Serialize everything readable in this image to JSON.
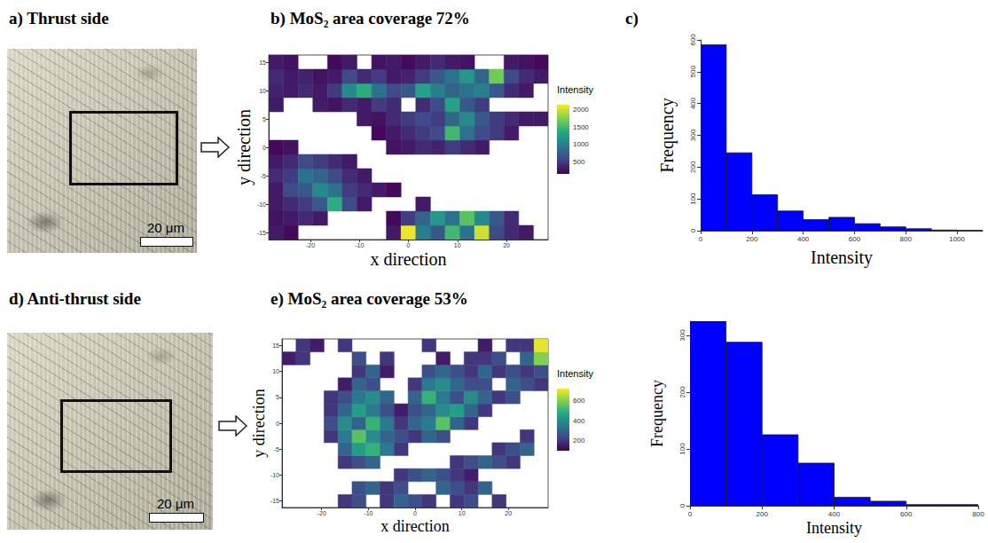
{
  "images": [
    {
      "title": "a) Thrust side",
      "scale_bar": "20 μm"
    },
    {
      "title": "d) Anti-thrust side",
      "scale_bar": "20 μm"
    }
  ],
  "chart_data": [
    {
      "type": "heatmap",
      "title": "b) MoS₂ area coverage 72%",
      "x_label": "x direction",
      "y_label": "y direction",
      "xlim": [
        -28.5,
        28.5
      ],
      "ylim": [
        -16.25,
        16.25
      ],
      "xticks": [
        -20,
        -10,
        0,
        10,
        20
      ],
      "yticks": [
        -15,
        -10,
        -5,
        0,
        5,
        10,
        15
      ],
      "x": [
        -27,
        -24,
        -21,
        -18,
        -15,
        -12,
        -9,
        -6,
        -3,
        0,
        3,
        6,
        9,
        12,
        15,
        18,
        21,
        24,
        27
      ],
      "y": [
        -15,
        -12.5,
        -10,
        -7.5,
        -5,
        -2.5,
        0,
        2.5,
        5,
        7.5,
        10,
        12.5,
        15
      ],
      "cells": [
        [
          300,
          200,
          null,
          null,
          null,
          null,
          null,
          null,
          300,
          2100,
          1000,
          700,
          1500,
          900,
          2000,
          600,
          400,
          300,
          null
        ],
        [
          250,
          300,
          400,
          300,
          null,
          null,
          null,
          null,
          200,
          500,
          800,
          1200,
          900,
          1600,
          1100,
          700,
          400,
          null,
          null
        ],
        [
          300,
          400,
          500,
          700,
          1400,
          600,
          300,
          null,
          null,
          null,
          300,
          null,
          null,
          null,
          null,
          null,
          null,
          null,
          null
        ],
        [
          300,
          600,
          700,
          1100,
          900,
          500,
          400,
          300,
          200,
          null,
          null,
          null,
          null,
          null,
          null,
          null,
          null,
          null,
          null
        ],
        [
          400,
          500,
          900,
          800,
          600,
          400,
          300,
          null,
          null,
          null,
          null,
          null,
          null,
          null,
          null,
          null,
          null,
          null,
          null
        ],
        [
          300,
          400,
          600,
          500,
          400,
          300,
          null,
          null,
          null,
          null,
          null,
          null,
          null,
          null,
          null,
          null,
          null,
          null,
          null
        ],
        [
          200,
          250,
          null,
          null,
          null,
          null,
          null,
          null,
          250,
          300,
          400,
          350,
          500,
          400,
          300,
          null,
          null,
          null,
          null
        ],
        [
          null,
          null,
          null,
          null,
          null,
          null,
          null,
          200,
          300,
          400,
          500,
          600,
          1500,
          900,
          600,
          500,
          300,
          null,
          null
        ],
        [
          null,
          null,
          null,
          null,
          null,
          null,
          300,
          250,
          400,
          500,
          600,
          500,
          800,
          1100,
          700,
          500,
          400,
          300,
          300
        ],
        [
          300,
          null,
          null,
          300,
          250,
          400,
          300,
          500,
          400,
          null,
          400,
          600,
          1300,
          700,
          500,
          null,
          null,
          null,
          null
        ],
        [
          350,
          300,
          400,
          300,
          500,
          1100,
          1400,
          900,
          600,
          700,
          1300,
          1000,
          800,
          900,
          1000,
          700,
          400,
          300,
          null
        ],
        [
          400,
          300,
          350,
          250,
          300,
          600,
          400,
          500,
          300,
          350,
          500,
          700,
          900,
          1200,
          800,
          1700,
          600,
          400,
          300
        ],
        [
          300,
          250,
          null,
          null,
          200,
          300,
          null,
          250,
          300,
          200,
          300,
          400,
          300,
          250,
          null,
          null,
          300,
          250,
          200
        ]
      ],
      "colorbar": {
        "title": "Intensity",
        "range": [
          150,
          2150
        ],
        "ticks": [
          500,
          1000,
          1500,
          2000
        ]
      }
    },
    {
      "type": "histogram",
      "title": "c)",
      "x_label": "Intensity",
      "y_label": "Frequency",
      "color": "#0000ff",
      "bins": [
        0,
        100,
        200,
        300,
        400,
        500,
        600,
        700,
        800,
        900,
        1000,
        1100
      ],
      "counts": [
        585,
        245,
        113,
        62,
        35,
        42,
        22,
        12,
        6,
        2,
        1
      ],
      "xlim": [
        0,
        1100
      ],
      "xticks": [
        0,
        200,
        400,
        600,
        800,
        1000
      ],
      "ylim": [
        0,
        600
      ],
      "yticks": [
        0,
        100,
        200,
        300,
        400,
        500,
        600
      ]
    },
    {
      "type": "heatmap",
      "title": "e) MoS₂ area coverage 53%",
      "x_label": "x direction",
      "y_label": "y direction",
      "xlim": [
        -28.5,
        28.5
      ],
      "ylim": [
        -16.25,
        16.25
      ],
      "xticks": [
        -20,
        -10,
        0,
        10,
        20
      ],
      "yticks": [
        -15,
        -10,
        -5,
        0,
        5,
        10,
        15
      ],
      "x": [
        -27,
        -24,
        -21,
        -18,
        -15,
        -12,
        -9,
        -6,
        -3,
        0,
        3,
        6,
        9,
        12,
        15,
        18,
        21,
        24,
        27
      ],
      "y": [
        -15,
        -12.5,
        -10,
        -7.5,
        -5,
        -2.5,
        0,
        2.5,
        5,
        7.5,
        10,
        12.5,
        15
      ],
      "cells": [
        [
          null,
          null,
          null,
          null,
          200,
          250,
          null,
          200,
          300,
          250,
          200,
          null,
          200,
          250,
          null,
          200,
          null,
          null,
          null
        ],
        [
          null,
          null,
          null,
          null,
          null,
          250,
          300,
          200,
          250,
          null,
          null,
          300,
          250,
          200,
          300,
          null,
          null,
          null,
          null
        ],
        [
          null,
          null,
          null,
          null,
          null,
          null,
          null,
          null,
          200,
          250,
          300,
          250,
          200,
          150,
          null,
          null,
          null,
          null,
          null
        ],
        [
          null,
          null,
          null,
          null,
          200,
          250,
          300,
          null,
          null,
          null,
          null,
          null,
          200,
          250,
          300,
          250,
          200,
          null,
          null
        ],
        [
          null,
          null,
          null,
          null,
          300,
          450,
          500,
          350,
          200,
          null,
          null,
          null,
          null,
          null,
          null,
          200,
          250,
          300,
          null
        ],
        [
          null,
          null,
          null,
          200,
          350,
          550,
          400,
          300,
          250,
          200,
          300,
          250,
          null,
          null,
          null,
          null,
          null,
          200,
          null
        ],
        [
          null,
          null,
          null,
          250,
          400,
          300,
          500,
          350,
          200,
          300,
          350,
          550,
          300,
          200,
          null,
          null,
          null,
          null,
          null
        ],
        [
          null,
          null,
          null,
          200,
          300,
          450,
          350,
          250,
          150,
          250,
          300,
          400,
          450,
          300,
          200,
          null,
          null,
          null,
          null
        ],
        [
          null,
          null,
          null,
          200,
          250,
          350,
          400,
          300,
          null,
          300,
          500,
          350,
          250,
          400,
          300,
          200,
          250,
          null,
          null
        ],
        [
          null,
          null,
          null,
          null,
          150,
          300,
          250,
          null,
          null,
          200,
          350,
          400,
          300,
          250,
          250,
          null,
          300,
          250,
          200
        ],
        [
          null,
          null,
          null,
          null,
          null,
          200,
          300,
          150,
          null,
          null,
          250,
          300,
          250,
          200,
          300,
          200,
          250,
          200,
          250
        ],
        [
          150,
          200,
          null,
          null,
          null,
          250,
          null,
          200,
          null,
          null,
          null,
          150,
          null,
          200,
          200,
          250,
          null,
          300,
          600
        ],
        [
          null,
          200,
          150,
          null,
          200,
          null,
          null,
          null,
          null,
          null,
          200,
          null,
          null,
          null,
          150,
          null,
          200,
          200,
          700
        ]
      ],
      "colorbar": {
        "title": "Intensity",
        "range": [
          100,
          720
        ],
        "ticks": [
          200,
          400,
          600
        ]
      }
    },
    {
      "type": "histogram",
      "x_label": "Intensity",
      "y_label": "Frequency",
      "color": "#0000ff",
      "bins": [
        0,
        100,
        200,
        300,
        400,
        500,
        600,
        700,
        800
      ],
      "counts": [
        325,
        288,
        125,
        75,
        15,
        8,
        2,
        2
      ],
      "xlim": [
        0,
        800
      ],
      "xticks": [
        0,
        200,
        400,
        600,
        800
      ],
      "ylim": [
        0,
        325
      ],
      "yticks": [
        0,
        100,
        200,
        300
      ]
    }
  ]
}
